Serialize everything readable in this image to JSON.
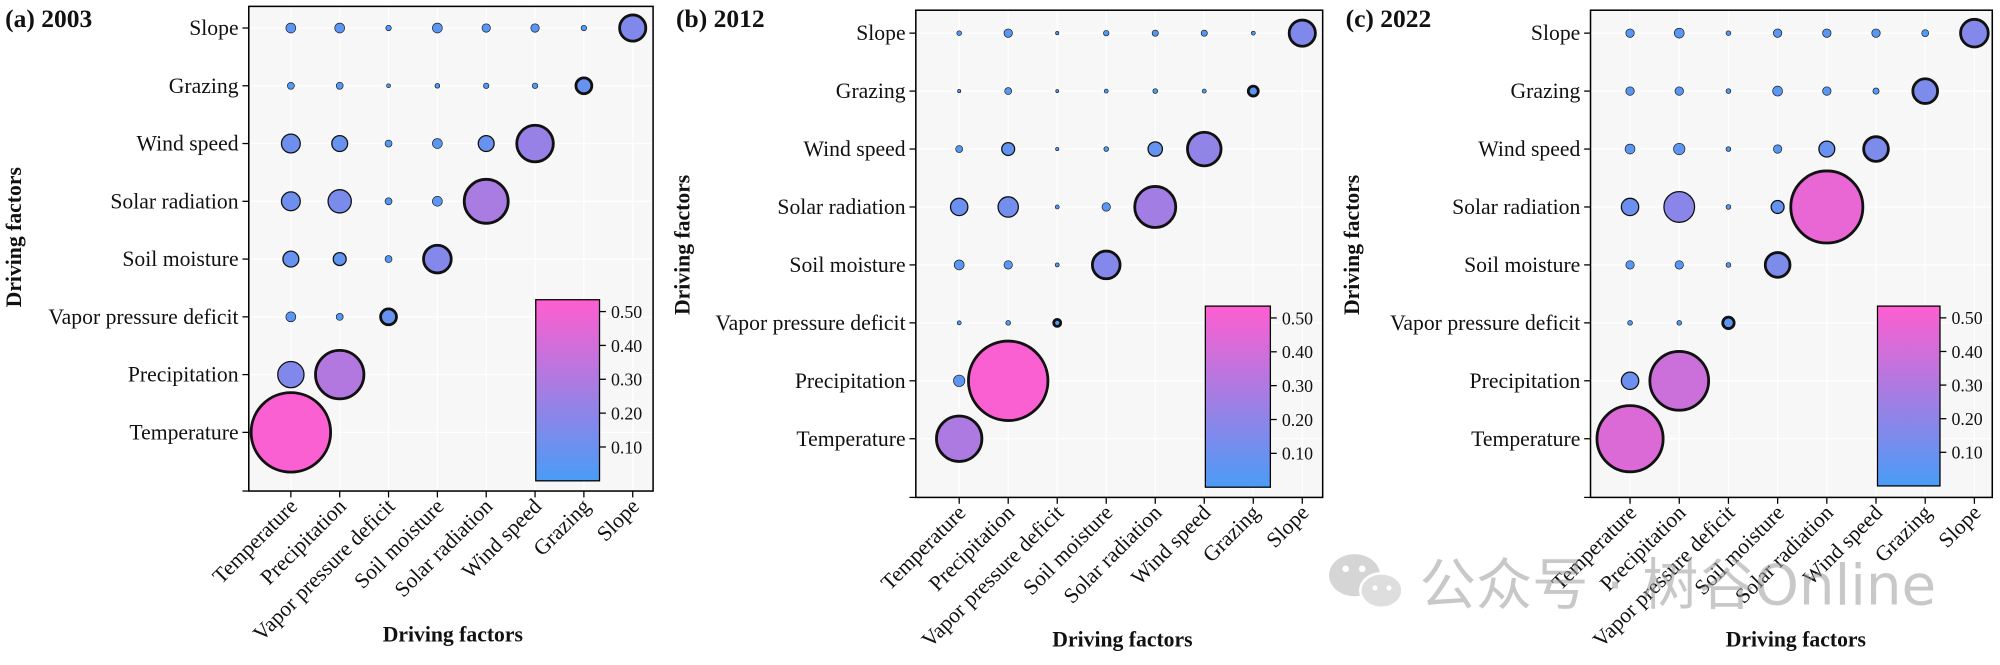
{
  "figure": {
    "watermark": "公众号 · 树谷Online"
  },
  "colors": {
    "low": "#4a9cf6",
    "high": "#ff5ed0",
    "outline": "#111111",
    "background": "#f7f7f7"
  },
  "chart_data": [
    {
      "type": "heatmap",
      "title": "(a) 2003",
      "xlabel": "Driving factors",
      "ylabel": "Driving factors",
      "x_categories": [
        "Temperature",
        "Precipitation",
        "Vapor pressure deficit",
        "Soil moisture",
        "Solar radiation",
        "Wind speed",
        "Grazing",
        "Slope"
      ],
      "y_categories": [
        "Temperature",
        "Precipitation",
        "Vapor pressure deficit",
        "Soil moisture",
        "Solar radiation",
        "Wind speed",
        "Grazing",
        "Slope"
      ],
      "values": [
        [
          0.52
        ],
        [
          0.16,
          0.31
        ],
        [
          0.05,
          0.03,
          0.09
        ],
        [
          0.09,
          0.07,
          0.03,
          0.17
        ],
        [
          0.11,
          0.14,
          0.03,
          0.05,
          0.28
        ],
        [
          0.11,
          0.09,
          0.03,
          0.05,
          0.09,
          0.23
        ],
        [
          0.03,
          0.03,
          0.01,
          0.015,
          0.02,
          0.02,
          0.09
        ],
        [
          0.05,
          0.05,
          0.02,
          0.05,
          0.04,
          0.04,
          0.02,
          0.16
        ]
      ],
      "colorbar": {
        "range": [
          0,
          0.535
        ],
        "ticks": [
          "0.10",
          "0.20",
          "0.30",
          "0.40",
          "0.50"
        ]
      }
    },
    {
      "type": "heatmap",
      "title": "(b) 2012",
      "xlabel": "Driving factors",
      "ylabel": "Driving factors",
      "x_categories": [
        "Temperature",
        "Precipitation",
        "Vapor pressure deficit",
        "Soil moisture",
        "Solar radiation",
        "Wind speed",
        "Grazing",
        "Slope"
      ],
      "y_categories": [
        "Temperature",
        "Precipitation",
        "Vapor pressure deficit",
        "Soil moisture",
        "Solar radiation",
        "Wind speed",
        "Grazing",
        "Slope"
      ],
      "values": [
        [
          0.29
        ],
        [
          0.06,
          0.52
        ],
        [
          0.01,
          0.015,
          0.03
        ],
        [
          0.05,
          0.04,
          0.01,
          0.17
        ],
        [
          0.1,
          0.12,
          0.01,
          0.04,
          0.26
        ],
        [
          0.03,
          0.07,
          0.005,
          0.015,
          0.08,
          0.21
        ],
        [
          0.005,
          0.03,
          0.003,
          0.01,
          0.015,
          0.01,
          0.05
        ],
        [
          0.015,
          0.04,
          0.005,
          0.02,
          0.025,
          0.025,
          0.01,
          0.16
        ]
      ],
      "colorbar": {
        "range": [
          0,
          0.535
        ],
        "ticks": [
          "0.10",
          "0.20",
          "0.30",
          "0.40",
          "0.50"
        ]
      }
    },
    {
      "type": "heatmap",
      "title": "(c) 2022",
      "xlabel": "Driving factors",
      "ylabel": "Driving factors",
      "x_categories": [
        "Temperature",
        "Precipitation",
        "Vapor pressure deficit",
        "Soil moisture",
        "Solar radiation",
        "Wind speed",
        "Grazing",
        "Slope"
      ],
      "y_categories": [
        "Temperature",
        "Precipitation",
        "Vapor pressure deficit",
        "Soil moisture",
        "Solar radiation",
        "Wind speed",
        "Grazing",
        "Slope"
      ],
      "values": [
        [
          0.43
        ],
        [
          0.1,
          0.38
        ],
        [
          0.015,
          0.015,
          0.06
        ],
        [
          0.04,
          0.04,
          0.015,
          0.15
        ],
        [
          0.1,
          0.19,
          0.015,
          0.07,
          0.47
        ],
        [
          0.05,
          0.06,
          0.015,
          0.04,
          0.09,
          0.15
        ],
        [
          0.04,
          0.04,
          0.015,
          0.05,
          0.04,
          0.025,
          0.15
        ],
        [
          0.04,
          0.05,
          0.015,
          0.04,
          0.04,
          0.04,
          0.03,
          0.17
        ]
      ],
      "colorbar": {
        "range": [
          0,
          0.535
        ],
        "ticks": [
          "0.10",
          "0.20",
          "0.30",
          "0.40",
          "0.50"
        ]
      }
    }
  ]
}
